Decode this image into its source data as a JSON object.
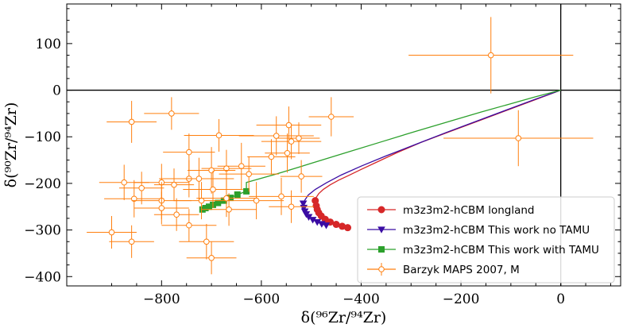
{
  "chart_data": {
    "type": "scatter",
    "xlabel": "δ(⁹⁶Zr/⁹⁴Zr)",
    "ylabel": "δ(⁹⁰Zr/⁹⁴Zr)",
    "xlim": [
      -990,
      120
    ],
    "ylim": [
      -420,
      185
    ],
    "xticks": [
      -800,
      -600,
      -400,
      -200,
      0
    ],
    "xtick_labels": [
      "−800",
      "−600",
      "−400",
      "−200",
      "0"
    ],
    "yticks": [
      -400,
      -300,
      -200,
      -100,
      0,
      100
    ],
    "ytick_labels": [
      "−400",
      "−300",
      "−200",
      "−100",
      "0",
      "100"
    ],
    "legend_position": "lower-right",
    "series": [
      {
        "name": "m3z3m2-hCBM longland",
        "color": "#d62728",
        "marker": "circle",
        "curve": [
          [
            0,
            0
          ],
          [
            -40,
            -16
          ],
          [
            -100,
            -40
          ],
          [
            -160,
            -64
          ],
          [
            -220,
            -88
          ],
          [
            -280,
            -112
          ],
          [
            -330,
            -135
          ],
          [
            -370,
            -155
          ],
          [
            -400,
            -170
          ],
          [
            -425,
            -183
          ],
          [
            -445,
            -193
          ],
          [
            -462,
            -203
          ],
          [
            -476,
            -213
          ],
          [
            -485,
            -222
          ],
          [
            -490,
            -230
          ],
          [
            -492,
            -237
          ]
        ],
        "markers": [
          [
            -492,
            -237
          ],
          [
            -490,
            -248
          ],
          [
            -488,
            -256
          ],
          [
            -485,
            -263
          ],
          [
            -480,
            -270
          ],
          [
            -472,
            -277
          ],
          [
            -462,
            -283
          ],
          [
            -450,
            -288
          ],
          [
            -438,
            -292
          ],
          [
            -427,
            -295
          ]
        ]
      },
      {
        "name": "m3z3m2-hCBM This work no TAMU",
        "color": "#3a0ca3",
        "marker": "triangle-down",
        "curve": [
          [
            0,
            0
          ],
          [
            -50,
            -19
          ],
          [
            -110,
            -43
          ],
          [
            -170,
            -67
          ],
          [
            -230,
            -91
          ],
          [
            -290,
            -116
          ],
          [
            -350,
            -141
          ],
          [
            -400,
            -163
          ],
          [
            -440,
            -182
          ],
          [
            -470,
            -199
          ],
          [
            -492,
            -213
          ],
          [
            -506,
            -225
          ],
          [
            -513,
            -236
          ],
          [
            -516,
            -243
          ]
        ],
        "markers": [
          [
            -516,
            -243
          ],
          [
            -515,
            -252
          ],
          [
            -513,
            -260
          ],
          [
            -510,
            -266
          ],
          [
            -505,
            -272
          ],
          [
            -497,
            -278
          ],
          [
            -488,
            -283
          ],
          [
            -479,
            -287
          ],
          [
            -470,
            -290
          ]
        ]
      },
      {
        "name": "m3z3m2-hCBM This work with TAMU",
        "color": "#2ca02c",
        "marker": "square",
        "curve": [
          [
            0,
            0
          ],
          [
            -50,
            -14
          ],
          [
            -100,
            -29
          ],
          [
            -160,
            -47
          ],
          [
            -220,
            -66
          ],
          [
            -290,
            -88
          ],
          [
            -360,
            -111
          ],
          [
            -430,
            -134
          ],
          [
            -500,
            -157
          ],
          [
            -570,
            -180
          ],
          [
            -630,
            -198
          ]
        ],
        "markers": [
          [
            -630,
            -217
          ],
          [
            -648,
            -224
          ],
          [
            -662,
            -231
          ],
          [
            -675,
            -237
          ],
          [
            -687,
            -242
          ],
          [
            -697,
            -246
          ],
          [
            -705,
            -250
          ],
          [
            -712,
            -253
          ],
          [
            -718,
            -256
          ]
        ]
      },
      {
        "name": "Barzyk MAPS 2007, M",
        "color": "#ff7f0e",
        "marker": "open-circle",
        "points": [
          {
            "x": -140,
            "y": 75,
            "xerr": 165,
            "yerr": 82
          },
          {
            "x": -85,
            "y": -103,
            "xerr": 150,
            "yerr": 60
          },
          {
            "x": -860,
            "y": -68,
            "xerr": 50,
            "yerr": 45
          },
          {
            "x": -780,
            "y": -50,
            "xerr": 55,
            "yerr": 35
          },
          {
            "x": -685,
            "y": -97,
            "xerr": 70,
            "yerr": 35
          },
          {
            "x": -570,
            "y": -98,
            "xerr": 75,
            "yerr": 42
          },
          {
            "x": -745,
            "y": -133,
            "xerr": 52,
            "yerr": 40
          },
          {
            "x": -545,
            "y": -75,
            "xerr": 65,
            "yerr": 40
          },
          {
            "x": -460,
            "y": -57,
            "xerr": 45,
            "yerr": 42
          },
          {
            "x": -525,
            "y": -103,
            "xerr": 42,
            "yerr": 34
          },
          {
            "x": -540,
            "y": -110,
            "xerr": 60,
            "yerr": 38
          },
          {
            "x": -548,
            "y": -135,
            "xerr": 45,
            "yerr": 42
          },
          {
            "x": -580,
            "y": -143,
            "xerr": 48,
            "yerr": 38
          },
          {
            "x": -640,
            "y": -163,
            "xerr": 48,
            "yerr": 50
          },
          {
            "x": -670,
            "y": -168,
            "xerr": 50,
            "yerr": 40
          },
          {
            "x": -700,
            "y": -172,
            "xerr": 48,
            "yerr": 50
          },
          {
            "x": -625,
            "y": -180,
            "xerr": 60,
            "yerr": 38
          },
          {
            "x": -520,
            "y": -185,
            "xerr": 42,
            "yerr": 35
          },
          {
            "x": -745,
            "y": -190,
            "xerr": 60,
            "yerr": 40
          },
          {
            "x": -725,
            "y": -190,
            "xerr": 70,
            "yerr": 45
          },
          {
            "x": -800,
            "y": -198,
            "xerr": 55,
            "yerr": 40
          },
          {
            "x": -875,
            "y": -198,
            "xerr": 50,
            "yerr": 38
          },
          {
            "x": -840,
            "y": -210,
            "xerr": 45,
            "yerr": 35
          },
          {
            "x": -775,
            "y": -203,
            "xerr": 40,
            "yerr": 35
          },
          {
            "x": -697,
            "y": -213,
            "xerr": 60,
            "yerr": 40
          },
          {
            "x": -855,
            "y": -233,
            "xerr": 60,
            "yerr": 40
          },
          {
            "x": -800,
            "y": -237,
            "xerr": 60,
            "yerr": 40
          },
          {
            "x": -720,
            "y": -237,
            "xerr": 55,
            "yerr": 40
          },
          {
            "x": -670,
            "y": -232,
            "xerr": 60,
            "yerr": 40
          },
          {
            "x": -610,
            "y": -237,
            "xerr": 55,
            "yerr": 40
          },
          {
            "x": -560,
            "y": -228,
            "xerr": 65,
            "yerr": 40
          },
          {
            "x": -540,
            "y": -250,
            "xerr": 45,
            "yerr": 35
          },
          {
            "x": -800,
            "y": -253,
            "xerr": 55,
            "yerr": 35
          },
          {
            "x": -770,
            "y": -267,
            "xerr": 45,
            "yerr": 35
          },
          {
            "x": -665,
            "y": -256,
            "xerr": 55,
            "yerr": 35
          },
          {
            "x": -745,
            "y": -290,
            "xerr": 55,
            "yerr": 35
          },
          {
            "x": -900,
            "y": -305,
            "xerr": 50,
            "yerr": 35
          },
          {
            "x": -860,
            "y": -325,
            "xerr": 45,
            "yerr": 35
          },
          {
            "x": -710,
            "y": -325,
            "xerr": 55,
            "yerr": 38
          },
          {
            "x": -700,
            "y": -360,
            "xerr": 50,
            "yerr": 35
          }
        ]
      }
    ]
  }
}
